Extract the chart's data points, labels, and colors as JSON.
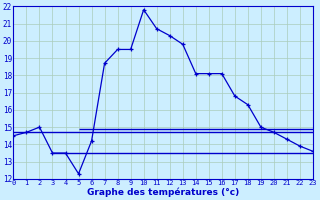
{
  "title": "Graphe des températures (°c)",
  "background_color": "#cceeff",
  "grid_color": "#aaccbb",
  "line_color": "#0000cc",
  "x_hours": [
    0,
    1,
    2,
    3,
    4,
    5,
    6,
    7,
    8,
    9,
    10,
    11,
    12,
    13,
    14,
    15,
    16,
    17,
    18,
    19,
    20,
    21,
    22,
    23
  ],
  "main_temps": [
    14.5,
    14.7,
    15.0,
    13.5,
    13.5,
    12.3,
    14.2,
    18.7,
    19.5,
    19.5,
    21.8,
    20.7,
    20.3,
    19.8,
    18.1,
    18.1,
    18.1,
    16.8,
    16.3,
    15.0,
    14.7,
    14.3,
    13.9,
    13.6
  ],
  "hline1_y": 14.7,
  "hline1_x0": 0,
  "hline1_x1": 23,
  "hline2_y": 14.9,
  "hline2_x0": 5,
  "hline2_x1": 23,
  "hline3_y": 13.5,
  "hline3_x0": 3,
  "hline3_x1": 23,
  "ylim": [
    12,
    22
  ],
  "xlim": [
    0,
    23
  ]
}
